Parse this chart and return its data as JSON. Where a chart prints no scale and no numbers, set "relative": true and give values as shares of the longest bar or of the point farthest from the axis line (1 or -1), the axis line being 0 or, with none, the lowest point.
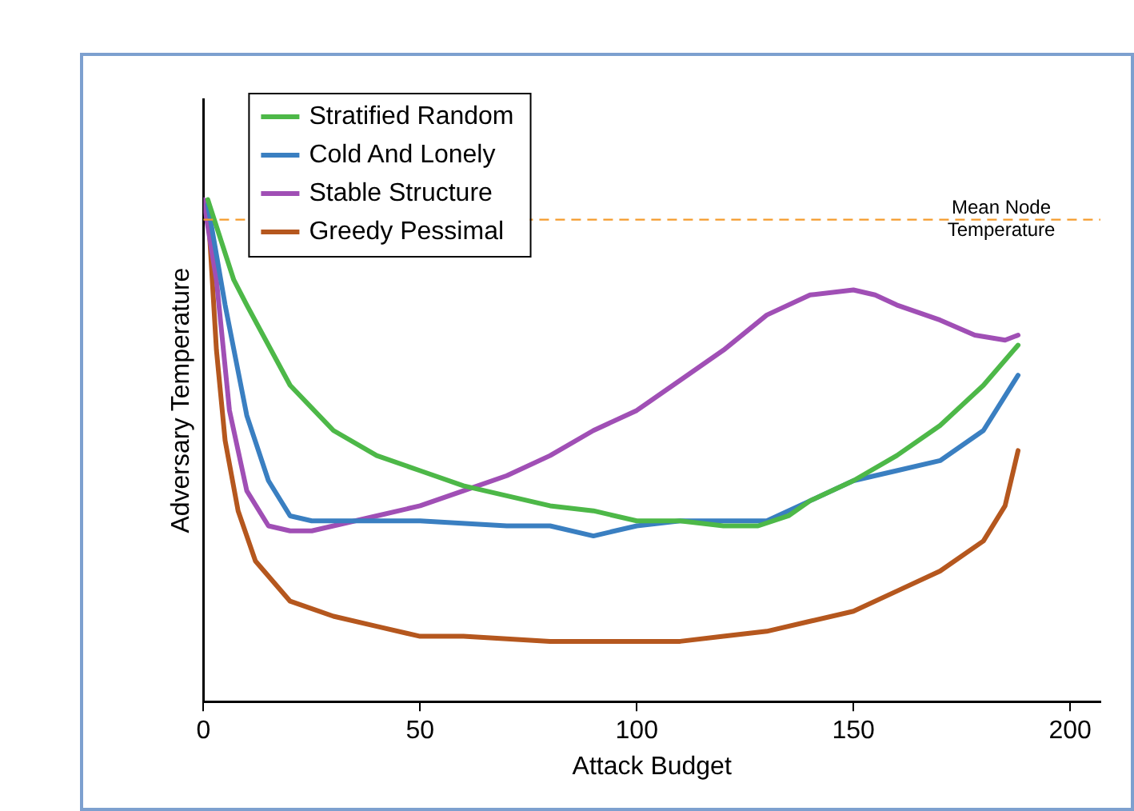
{
  "chart_data": {
    "type": "line",
    "relative": true,
    "xlabel": "Attack Budget",
    "ylabel": "Adversary Temperature",
    "xlim": [
      0,
      207
    ],
    "xticks": [
      0,
      50,
      100,
      150,
      200
    ],
    "legend": "top left",
    "grid": false,
    "marker": "none",
    "line_style": "solid",
    "ref_lines": [
      {
        "axis": "y",
        "value": 0.96,
        "label": "Mean Node Temperature",
        "color": "#f59b2d",
        "line_style": "dashed"
      }
    ],
    "series": [
      {
        "name": "Stratified Random",
        "color": "#4db848",
        "x": [
          1,
          7,
          10,
          20,
          30,
          40,
          50,
          60,
          70,
          80,
          90,
          100,
          110,
          120,
          128,
          135,
          140,
          150,
          160,
          170,
          180,
          188
        ],
        "values": [
          1.0,
          0.84,
          0.79,
          0.63,
          0.54,
          0.49,
          0.46,
          0.43,
          0.41,
          0.39,
          0.38,
          0.36,
          0.36,
          0.35,
          0.35,
          0.37,
          0.4,
          0.44,
          0.49,
          0.55,
          0.63,
          0.71
        ]
      },
      {
        "name": "Cold And Lonely",
        "color": "#3a7fc1",
        "x": [
          1,
          5,
          10,
          15,
          20,
          25,
          30,
          50,
          70,
          80,
          90,
          100,
          110,
          120,
          130,
          140,
          150,
          160,
          170,
          180,
          188
        ],
        "values": [
          0.99,
          0.79,
          0.57,
          0.44,
          0.37,
          0.36,
          0.36,
          0.36,
          0.35,
          0.35,
          0.33,
          0.35,
          0.36,
          0.36,
          0.36,
          0.4,
          0.44,
          0.46,
          0.48,
          0.54,
          0.65
        ]
      },
      {
        "name": "Stable Structure",
        "color": "#a04fb5",
        "x": [
          0,
          3,
          6,
          10,
          15,
          20,
          25,
          30,
          40,
          50,
          60,
          70,
          80,
          90,
          100,
          110,
          120,
          130,
          140,
          150,
          155,
          160,
          170,
          178,
          185,
          188
        ],
        "values": [
          1.0,
          0.84,
          0.58,
          0.42,
          0.35,
          0.34,
          0.34,
          0.35,
          0.37,
          0.39,
          0.42,
          0.45,
          0.49,
          0.54,
          0.58,
          0.64,
          0.7,
          0.77,
          0.81,
          0.82,
          0.81,
          0.79,
          0.76,
          0.73,
          0.72,
          0.73
        ]
      },
      {
        "name": "Greedy Pessimal",
        "color": "#b5571e",
        "x": [
          1,
          3,
          5,
          8,
          12,
          20,
          30,
          40,
          50,
          60,
          80,
          100,
          110,
          120,
          130,
          140,
          150,
          160,
          170,
          180,
          185,
          188
        ],
        "values": [
          0.99,
          0.7,
          0.52,
          0.38,
          0.28,
          0.2,
          0.17,
          0.15,
          0.13,
          0.13,
          0.12,
          0.12,
          0.12,
          0.13,
          0.14,
          0.16,
          0.18,
          0.22,
          0.26,
          0.32,
          0.39,
          0.5
        ]
      }
    ]
  }
}
